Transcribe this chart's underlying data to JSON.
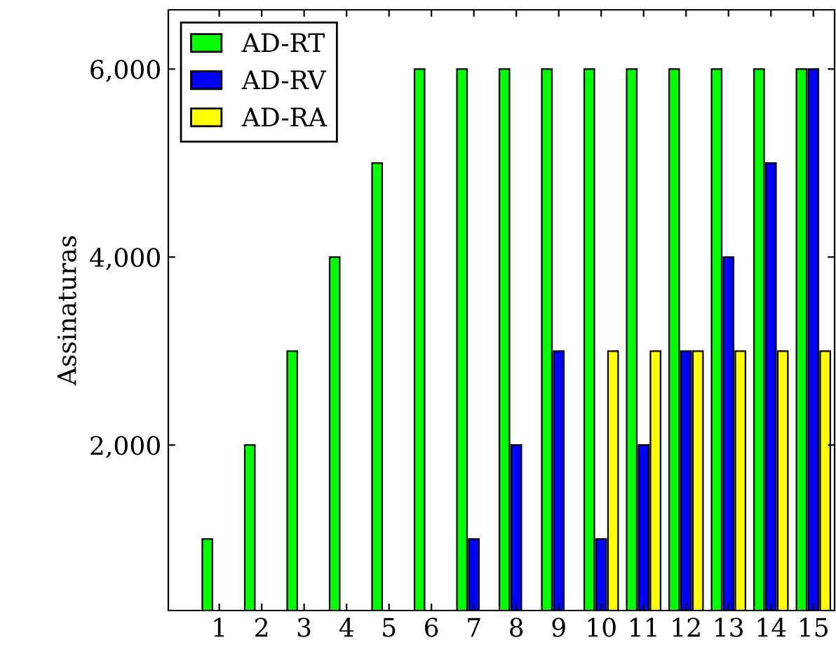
{
  "chart_data": {
    "type": "bar",
    "ylabel": "Assinaturas",
    "categories": [
      "1",
      "2",
      "3",
      "4",
      "5",
      "6",
      "7",
      "8",
      "9",
      "10",
      "11",
      "12",
      "13",
      "14",
      "15"
    ],
    "series": [
      {
        "name": "AD-RT",
        "color": "#00ff00",
        "values": [
          1000,
          2000,
          3000,
          4000,
          5000,
          6000,
          6000,
          6000,
          6000,
          6000,
          6000,
          6000,
          6000,
          6000,
          6000
        ]
      },
      {
        "name": "AD-RV",
        "color": "#0000ff",
        "values": [
          null,
          null,
          null,
          null,
          null,
          null,
          1000,
          2000,
          3000,
          1000,
          2000,
          3000,
          4000,
          5000,
          6000
        ]
      },
      {
        "name": "AD-RA",
        "color": "#ffff00",
        "values": [
          null,
          null,
          null,
          null,
          null,
          null,
          null,
          null,
          null,
          3000,
          3000,
          3000,
          3000,
          3000,
          3000
        ]
      }
    ],
    "ylim": [
      240,
      6630
    ],
    "yticks": [
      {
        "value": 2000,
        "label": "2,000"
      },
      {
        "value": 4000,
        "label": "4,000"
      },
      {
        "value": 6000,
        "label": "6,000"
      }
    ],
    "legend": "top left",
    "grid": false
  }
}
